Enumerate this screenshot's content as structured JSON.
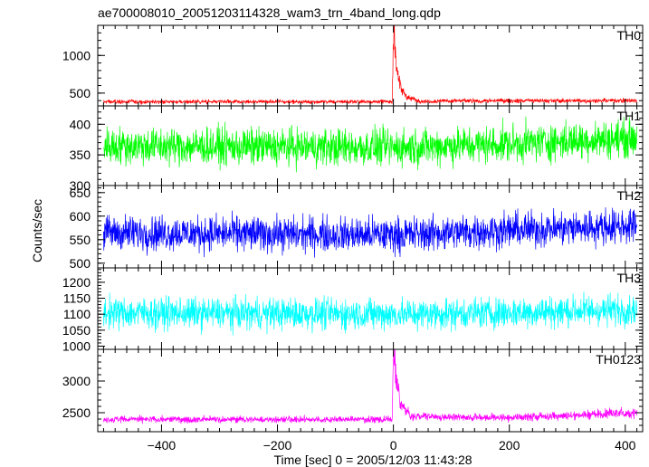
{
  "chart_data": {
    "type": "line",
    "title": "ae700008010_20051203114328_wam3_trn_4band_long.qdp",
    "xlabel": "Time [sec] 0 = 2005/12/03 11:43:28",
    "ylabel": "Counts/sec",
    "xlim": [
      -510,
      430
    ],
    "xticks": [
      -400,
      -200,
      0,
      200,
      400
    ],
    "xtick_labels": [
      "−400",
      "−200",
      "0",
      "200",
      "400"
    ],
    "grid": false,
    "panels": [
      {
        "name": "TH0",
        "color": "#ff0000",
        "ylim": [
          330,
          1400
        ],
        "yticks": [
          500,
          1000
        ],
        "ytick_labels": [
          "500",
          "1000"
        ],
        "keypoints": [
          {
            "t": -500,
            "v": 385
          },
          {
            "t": -2,
            "v": 385
          },
          {
            "t": 0,
            "v": 1400
          },
          {
            "t": 5,
            "v": 900
          },
          {
            "t": 12,
            "v": 560
          },
          {
            "t": 25,
            "v": 440
          },
          {
            "t": 45,
            "v": 395
          },
          {
            "t": 420,
            "v": 400
          }
        ],
        "noise": 22
      },
      {
        "name": "TH1",
        "color": "#00ff00",
        "ylim": [
          300,
          430
        ],
        "yticks": [
          300,
          350,
          400
        ],
        "ytick_labels": [
          "300",
          "350",
          "400"
        ],
        "keypoints": [
          {
            "t": -500,
            "v": 365
          },
          {
            "t": 0,
            "v": 362
          },
          {
            "t": 200,
            "v": 368
          },
          {
            "t": 420,
            "v": 378
          }
        ],
        "noise": 26
      },
      {
        "name": "TH2",
        "color": "#0000ff",
        "ylim": [
          490,
          665
        ],
        "yticks": [
          500,
          550,
          600,
          650
        ],
        "ytick_labels": [
          "500",
          "550",
          "600",
          "650"
        ],
        "keypoints": [
          {
            "t": -500,
            "v": 565
          },
          {
            "t": 0,
            "v": 560
          },
          {
            "t": 200,
            "v": 570
          },
          {
            "t": 420,
            "v": 580
          }
        ],
        "noise": 32
      },
      {
        "name": "TH3",
        "color": "#00ffff",
        "ylim": [
          990,
          1245
        ],
        "yticks": [
          1000,
          1050,
          1100,
          1150,
          1200
        ],
        "ytick_labels": [
          "1000",
          "1050",
          "1100",
          "1150",
          "1200"
        ],
        "keypoints": [
          {
            "t": -500,
            "v": 1105
          },
          {
            "t": 0,
            "v": 1100
          },
          {
            "t": 200,
            "v": 1105
          },
          {
            "t": 420,
            "v": 1115
          }
        ],
        "noise": 42
      },
      {
        "name": "TH0123",
        "color": "#ff00ff",
        "ylim": [
          2200,
          3500
        ],
        "yticks": [
          2500,
          3000
        ],
        "ytick_labels": [
          "2500",
          "3000"
        ],
        "keypoints": [
          {
            "t": -500,
            "v": 2395
          },
          {
            "t": -2,
            "v": 2395
          },
          {
            "t": 0,
            "v": 3500
          },
          {
            "t": 5,
            "v": 3000
          },
          {
            "t": 12,
            "v": 2650
          },
          {
            "t": 30,
            "v": 2440
          },
          {
            "t": 200,
            "v": 2420
          },
          {
            "t": 420,
            "v": 2500
          }
        ],
        "noise": 45
      }
    ]
  }
}
